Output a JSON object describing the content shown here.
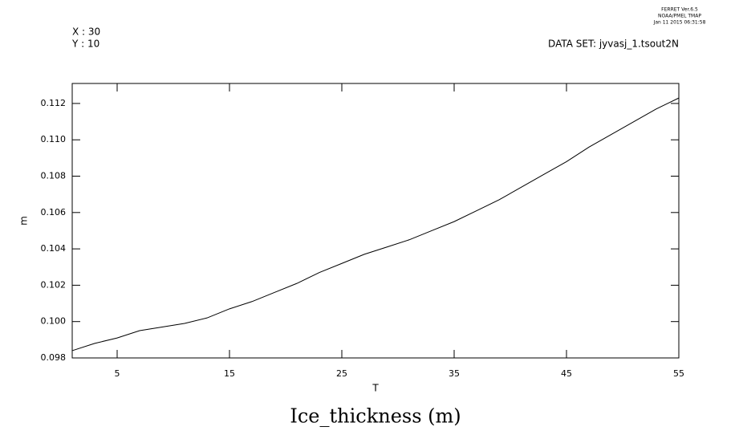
{
  "chart_data": {
    "type": "line",
    "title": "Ice_thickness (m)",
    "header_left": [
      "X : 30",
      "Y : 10"
    ],
    "dataset": "DATA SET: jyvasj_1.tsout2N",
    "stamp": [
      "FERRET Ver.6.5",
      "NOAA/PMEL TMAP",
      "Jan 11 2015 06:31:58"
    ],
    "x_label": "T",
    "y_label": "m",
    "x": [
      1,
      3,
      5,
      7,
      9,
      11,
      13,
      15,
      17,
      19,
      21,
      23,
      25,
      27,
      29,
      31,
      33,
      35,
      37,
      39,
      41,
      43,
      45,
      47,
      49,
      51,
      53,
      55
    ],
    "series": [
      {
        "color": "#000000",
        "values": [
          0.0984,
          0.0988,
          0.0991,
          0.0995,
          0.0997,
          0.0999,
          0.1002,
          0.1007,
          0.1011,
          0.1016,
          0.1021,
          0.1027,
          0.1032,
          0.1037,
          0.1041,
          0.1045,
          0.105,
          0.1055,
          0.1061,
          0.1067,
          0.1074,
          0.1081,
          0.1088,
          0.1096,
          0.1103,
          0.111,
          0.1117,
          0.1123
        ]
      }
    ],
    "xlim": [
      1,
      55
    ],
    "xticks": [
      5,
      15,
      25,
      35,
      45,
      55
    ],
    "ylim": [
      0.098,
      0.1131
    ],
    "yticks": [
      0.098,
      {
        "value": 0.1,
        "label": "0.100"
      },
      0.102,
      0.104,
      0.106,
      0.108,
      {
        "value": 0.11,
        "label": "0.110"
      },
      0.112
    ]
  }
}
